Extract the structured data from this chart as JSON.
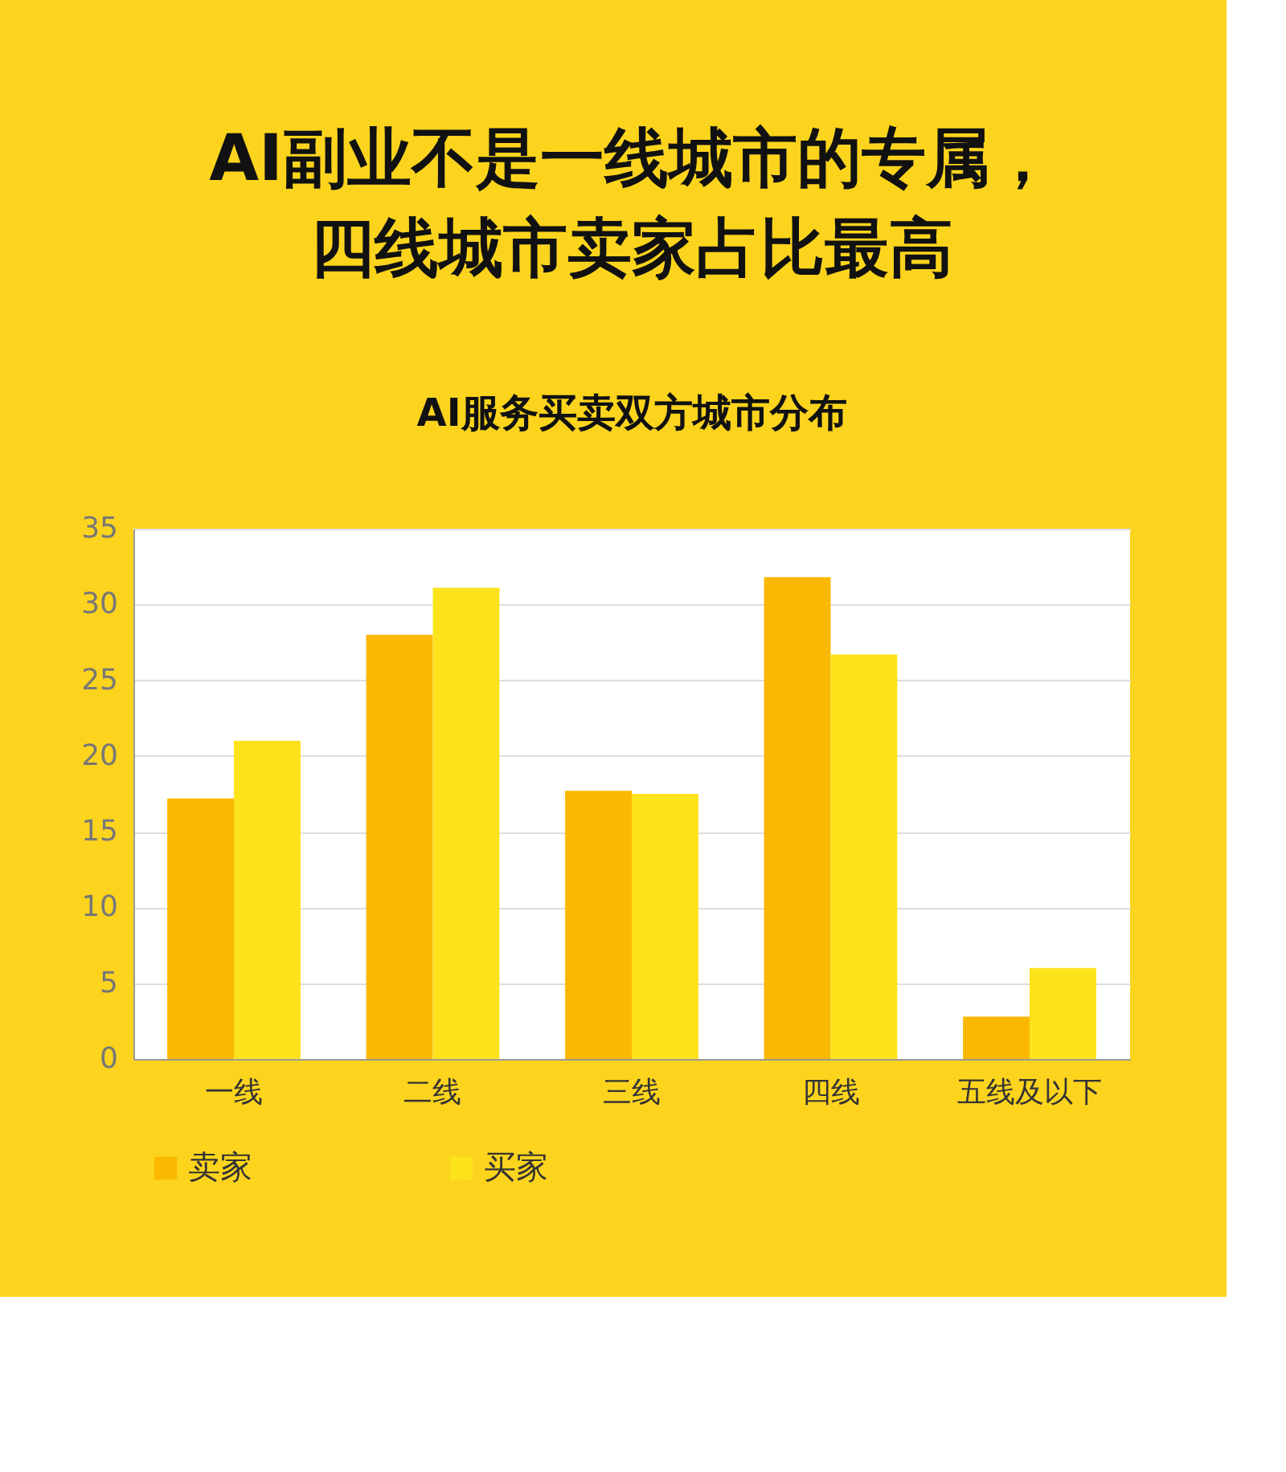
{
  "chart_data": {
    "type": "bar",
    "title": [
      "AI副业不是一线城市的专属，",
      "四线城市卖家占比最高"
    ],
    "subtitle": "AI服务买卖双方城市分布",
    "categories": [
      "一线",
      "二线",
      "三线",
      "四线",
      "五线及以下"
    ],
    "series": [
      {
        "name": "卖家",
        "color": "#fbb800",
        "values": [
          17.2,
          28.0,
          17.7,
          31.8,
          2.8
        ]
      },
      {
        "name": "买家",
        "color": "#fce31c",
        "values": [
          21.0,
          31.1,
          17.5,
          26.7,
          6.0
        ]
      }
    ],
    "ylim": [
      0,
      35
    ],
    "yticks": [
      0,
      5,
      10,
      15,
      20,
      25,
      30,
      35
    ],
    "grid": "y",
    "legend": "bottom"
  }
}
